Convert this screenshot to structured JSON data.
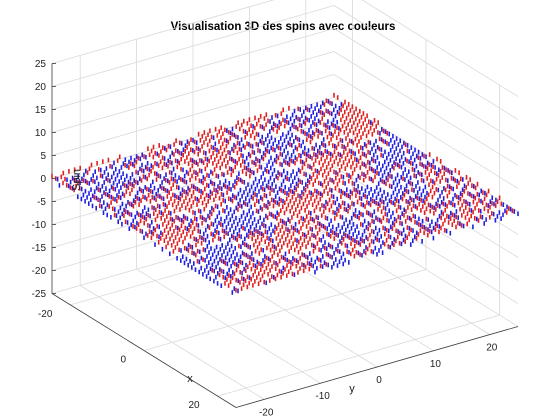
{
  "chart_data": {
    "type": "scatter",
    "title": "Visualisation 3D des spins avec couleurs",
    "xlabel": "x",
    "ylabel": "y",
    "zlabel": "Spin",
    "xlim": [
      -25,
      25
    ],
    "ylim": [
      -25,
      25
    ],
    "zlim": [
      -25,
      25
    ],
    "x_ticks": [
      "-20",
      "0",
      "20"
    ],
    "y_ticks": [
      "-20",
      "-10",
      "0",
      "10",
      "20"
    ],
    "z_ticks": [
      "25",
      "20",
      "15",
      "10",
      "5",
      "0",
      "-5",
      "-10",
      "-15",
      "-20",
      "-25"
    ],
    "grid": "on",
    "lattice": {
      "x_range": [
        -25,
        25
      ],
      "y_range": [
        -25,
        25
      ],
      "spin_values": [
        -1,
        1
      ]
    },
    "series": [
      {
        "color": "#e02020",
        "spin": 1
      },
      {
        "color": "#2020e0",
        "spin": -1
      }
    ]
  }
}
